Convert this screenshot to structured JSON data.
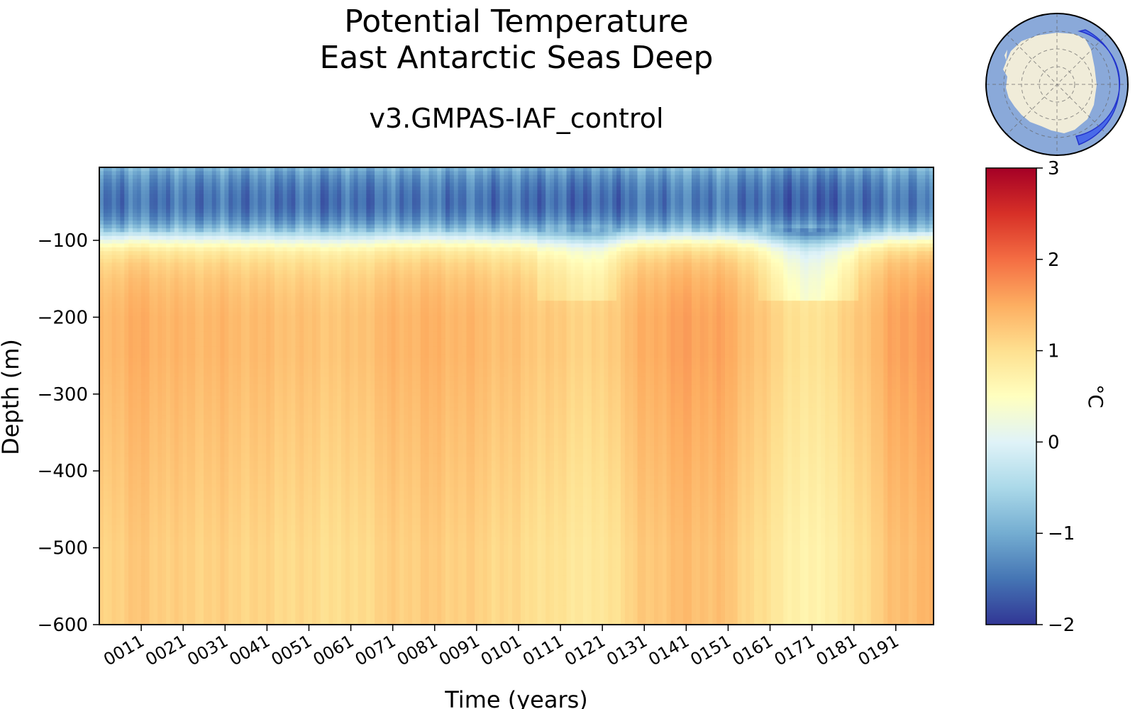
{
  "chart_data": {
    "type": "heatmap",
    "title_line1": "Potential Temperature",
    "title_line2": "East Antarctic Seas Deep",
    "subtitle": "v3.GMPAS-IAF_control",
    "xlabel": "Time (years)",
    "ylabel": "Depth (m)",
    "x_ticks": [
      "0011",
      "0021",
      "0031",
      "0041",
      "0051",
      "0061",
      "0071",
      "0081",
      "0091",
      "0101",
      "0111",
      "0121",
      "0131",
      "0141",
      "0151",
      "0161",
      "0171",
      "0181",
      "0191"
    ],
    "x_range_years": [
      1,
      200
    ],
    "y_ticks": [
      -100,
      -200,
      -300,
      -400,
      -500,
      -600
    ],
    "y_tick_labels": [
      "−100",
      "−200",
      "−300",
      "−400",
      "−500",
      "−600"
    ],
    "ylim": [
      -600,
      -5
    ],
    "colorbar": {
      "label": "°C",
      "range": [
        -2,
        3
      ],
      "ticks": [
        3,
        2,
        1,
        0,
        -1,
        -2
      ],
      "tick_labels": [
        "3",
        "2",
        "1",
        "0",
        "−1",
        "−2"
      ],
      "colormap": "RdYlBu_r",
      "colors": [
        "#313695",
        "#4575b4",
        "#74add1",
        "#abd9e9",
        "#e0f3f8",
        "#ffffbf",
        "#fee090",
        "#fdae61",
        "#f46d43",
        "#d73027",
        "#a50026"
      ]
    },
    "depth_levels": [
      -5,
      -15,
      -25,
      -35,
      -45,
      -55,
      -65,
      -75,
      -85,
      -95,
      -105,
      -115,
      -130,
      -150,
      -175,
      -200,
      -250,
      -300,
      -350,
      -400,
      -450,
      -500,
      -550,
      -600
    ],
    "profile_temperatures": [
      -0.9,
      -1.2,
      -1.35,
      -1.45,
      -1.5,
      -1.5,
      -1.4,
      -1.2,
      -0.8,
      -0.2,
      0.4,
      0.8,
      1.05,
      1.2,
      1.3,
      1.35,
      1.35,
      1.3,
      1.25,
      1.2,
      1.15,
      1.1,
      1.1,
      1.1
    ],
    "time_anomaly_knots": {
      "years": [
        1,
        10,
        20,
        30,
        40,
        50,
        60,
        70,
        80,
        90,
        100,
        110,
        120,
        130,
        140,
        150,
        160,
        170,
        180,
        190,
        200
      ],
      "deep_anomaly": [
        0.0,
        0.15,
        0.05,
        0.05,
        0.0,
        -0.05,
        -0.1,
        0.05,
        0.1,
        0.05,
        -0.05,
        -0.15,
        -0.25,
        0.1,
        0.25,
        0.2,
        -0.15,
        -0.45,
        -0.2,
        0.2,
        0.35
      ]
    }
  },
  "inset_map": {
    "icon": "antarctica-region-map-icon",
    "ocean_color": "#8aa9d9",
    "land_color": "#f0ecd9",
    "region_color": "#3355ee"
  }
}
